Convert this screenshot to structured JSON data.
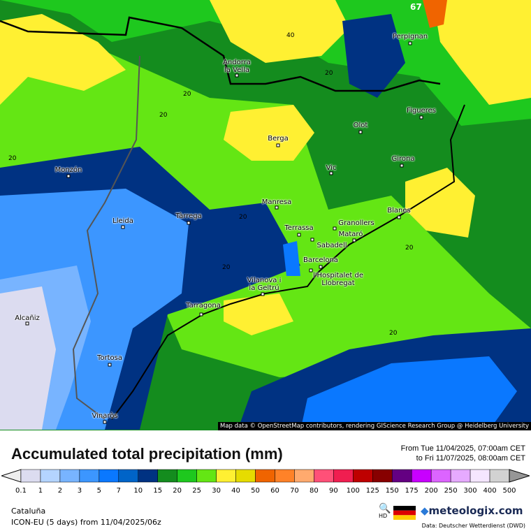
{
  "map": {
    "attribution": "Map data © OpenStreetMap contributors, rendering GIScience Research Group @ Heidelberg University",
    "cities": [
      {
        "name": "Perpignan"
      },
      {
        "name": "Andorra la Vella"
      },
      {
        "name": "Figueres"
      },
      {
        "name": "Olot"
      },
      {
        "name": "Berga"
      },
      {
        "name": "Girona"
      },
      {
        "name": "Vic"
      },
      {
        "name": "Monzón"
      },
      {
        "name": "Manresa"
      },
      {
        "name": "Blanes"
      },
      {
        "name": "Lleida"
      },
      {
        "name": "Tàrrega"
      },
      {
        "name": "Granollers"
      },
      {
        "name": "Terrassa"
      },
      {
        "name": "Mataró"
      },
      {
        "name": "Sabadell"
      },
      {
        "name": "Barcelona"
      },
      {
        "name": "l'Hospitalet de Llobregat"
      },
      {
        "name": "Vilanova i la Geltrú"
      },
      {
        "name": "Tarragona"
      },
      {
        "name": "Alcañiz"
      },
      {
        "name": "Tortosa"
      },
      {
        "name": "Vinaròs"
      }
    ],
    "contour_labels": [
      "40",
      "20",
      "20",
      "20",
      "20",
      "20",
      "20",
      "20",
      "20",
      "67"
    ]
  },
  "header": {
    "title": "Accumulated total precipitation (mm)",
    "from": "From Tue 11/04/2025, 07:00am CET",
    "to": "to Fri 11/07/2025, 08:00am CET"
  },
  "legend": {
    "ticks": [
      "0.1",
      "1",
      "2",
      "3",
      "5",
      "7",
      "10",
      "15",
      "20",
      "25",
      "30",
      "40",
      "50",
      "60",
      "70",
      "80",
      "90",
      "100",
      "125",
      "150",
      "175",
      "200",
      "250",
      "300",
      "400",
      "500"
    ],
    "colors": [
      "#dcdcf0",
      "#b4d4ff",
      "#78b4ff",
      "#3c96ff",
      "#0a78ff",
      "#0064c8",
      "#003282",
      "#148c1e",
      "#1ec81e",
      "#64e614",
      "#fff032",
      "#e6dc00",
      "#f06400",
      "#ff8228",
      "#ffaa6e",
      "#ff5078",
      "#f01e50",
      "#be0000",
      "#870000",
      "#640082",
      "#c800ff",
      "#dc64ff",
      "#e6aaff",
      "#f5e6ff",
      "#d2d2d2"
    ]
  },
  "footer": {
    "region": "Cataluña",
    "model": "ICON-EU (5 days) from  11/04/2025/06z",
    "hd": "HD",
    "brand": "meteologix.com",
    "source": "Data: Deutscher Wetterdienst  (DWD)"
  }
}
